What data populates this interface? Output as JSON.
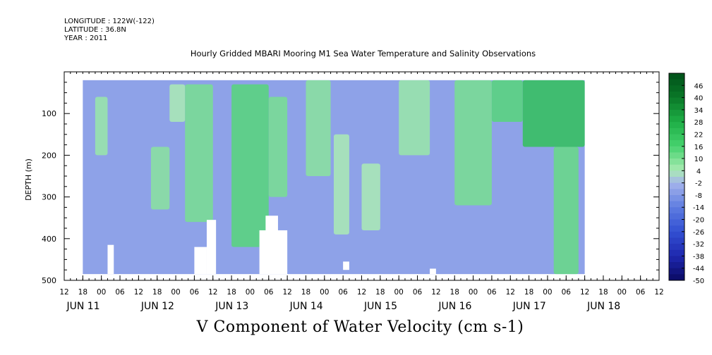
{
  "header": {
    "longitude": "LONGITUDE : 122W(-122)",
    "latitude": "LATITUDE : 36.8N",
    "year": "YEAR : 2011"
  },
  "chart_data": {
    "type": "heatmap",
    "title": "Hourly Gridded MBARI Mooring M1 Sea Water Temperature and Salinity Observations",
    "xlabel": "V Component of Water Velocity (cm s-1)",
    "ylabel": "DEPTH (m)",
    "ylim": [
      500,
      0
    ],
    "y_ticks": [
      100,
      200,
      300,
      400,
      500
    ],
    "y_tick_labels": [
      "100",
      "200",
      "300",
      "400",
      "500"
    ],
    "x_hour_labels": [
      "12",
      "18",
      "00",
      "06",
      "12",
      "18",
      "00",
      "06",
      "12",
      "18",
      "00",
      "06",
      "12",
      "18",
      "00",
      "06",
      "12",
      "18",
      "00",
      "06",
      "12",
      "18",
      "00",
      "06",
      "12",
      "18",
      "00",
      "06",
      "12",
      "18",
      "00",
      "06",
      "12"
    ],
    "x_day_labels": [
      "JUN 11",
      "JUN 12",
      "JUN 13",
      "JUN 14",
      "JUN 15",
      "JUN 16",
      "JUN 17",
      "JUN 18"
    ],
    "colorbar_levels": [
      "46",
      "40",
      "34",
      "28",
      "22",
      "16",
      "10",
      "4",
      "-2",
      "-8",
      "-14",
      "-20",
      "-26",
      "-32",
      "-38",
      "-44",
      "-50"
    ],
    "colorbar_range": [
      -50,
      52
    ],
    "data_start": "JUN 11 18",
    "data_end": "JUN 18 12",
    "depth_range": [
      20,
      485
    ],
    "bands": [
      {
        "start": "JUN 11 22",
        "end": "JUN 12 02",
        "top": 60,
        "bottom": 200,
        "v": 6
      },
      {
        "start": "JUN 12 16",
        "end": "JUN 12 22",
        "top": 180,
        "bottom": 330,
        "v": 8
      },
      {
        "start": "JUN 12 22",
        "end": "JUN 13 03",
        "top": 30,
        "bottom": 120,
        "v": 4
      },
      {
        "start": "JUN 13 03",
        "end": "JUN 13 12",
        "top": 30,
        "bottom": 360,
        "v": 10
      },
      {
        "start": "JUN 13 18",
        "end": "JUN 14 06",
        "top": 30,
        "bottom": 420,
        "v": 14
      },
      {
        "start": "JUN 14 06",
        "end": "JUN 14 12",
        "top": 60,
        "bottom": 300,
        "v": 10
      },
      {
        "start": "JUN 14 18",
        "end": "JUN 15 02",
        "top": 20,
        "bottom": 250,
        "v": 8
      },
      {
        "start": "JUN 15 03",
        "end": "JUN 15 08",
        "top": 150,
        "bottom": 390,
        "v": 4
      },
      {
        "start": "JUN 15 12",
        "end": "JUN 15 18",
        "top": 220,
        "bottom": 380,
        "v": 4
      },
      {
        "start": "JUN 16 00",
        "end": "JUN 16 10",
        "top": 20,
        "bottom": 200,
        "v": 6
      },
      {
        "start": "JUN 16 18",
        "end": "JUN 17 06",
        "top": 20,
        "bottom": 320,
        "v": 10
      },
      {
        "start": "JUN 17 06",
        "end": "JUN 17 16",
        "top": 20,
        "bottom": 120,
        "v": 14
      },
      {
        "start": "JUN 17 16",
        "end": "JUN 18 12",
        "top": 20,
        "bottom": 180,
        "v": 22
      },
      {
        "start": "JUN 18 02",
        "end": "JUN 18 10",
        "top": 180,
        "bottom": 485,
        "v": 12
      }
    ],
    "gaps": [
      {
        "start": "JUN 12 02",
        "end": "JUN 12 04",
        "top": 415,
        "bottom": 485
      },
      {
        "start": "JUN 13 06",
        "end": "JUN 13 10",
        "top": 420,
        "bottom": 485
      },
      {
        "start": "JUN 13 10",
        "end": "JUN 13 13",
        "top": 355,
        "bottom": 485
      },
      {
        "start": "JUN 14 03",
        "end": "JUN 14 12",
        "top": 380,
        "bottom": 485
      },
      {
        "start": "JUN 14 05",
        "end": "JUN 14 09",
        "top": 345,
        "bottom": 385
      },
      {
        "start": "JUN 15 06",
        "end": "JUN 15 08",
        "top": 455,
        "bottom": 475
      },
      {
        "start": "JUN 16 10",
        "end": "JUN 16 12",
        "top": 472,
        "bottom": 485
      }
    ]
  }
}
